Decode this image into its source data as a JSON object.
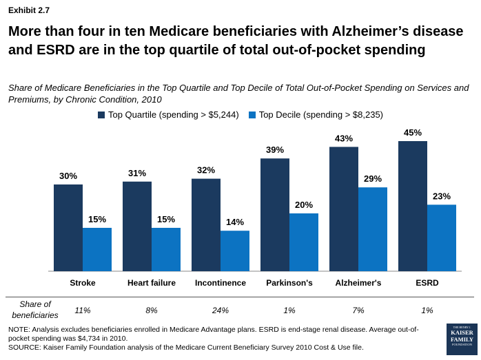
{
  "exhibit": "Exhibit 2.7",
  "title": "More than four in ten Medicare beneficiaries with Alzheimer’s disease and ESRD are in the top quartile of total out-of-pocket spending",
  "subtitle": "Share of Medicare Beneficiaries in the Top Quartile and Top Decile of Total Out-of-Pocket Spending on Services and Premiums, by Chronic Condition, 2010",
  "colors": {
    "top_quartile": "#1b3a5f",
    "top_decile": "#0c73c2"
  },
  "chart_data": {
    "type": "bar",
    "categories": [
      "Stroke",
      "Heart failure",
      "Incontinence",
      "Parkinson's",
      "Alzheimer's",
      "ESRD"
    ],
    "series": [
      {
        "name": "Top Quartile (spending > $5,244)",
        "values": [
          30,
          31,
          32,
          39,
          43,
          45
        ],
        "labels": [
          "30%",
          "31%",
          "32%",
          "39%",
          "43%",
          "45%"
        ]
      },
      {
        "name": "Top Decile (spending > $8,235)",
        "values": [
          15,
          15,
          14,
          20,
          29,
          23
        ],
        "labels": [
          "15%",
          "15%",
          "14%",
          "20%",
          "29%",
          "23%"
        ]
      }
    ],
    "ylim": [
      0,
      50
    ],
    "legend": "top-center",
    "grid": false
  },
  "share": {
    "label": "Share of beneficiaries",
    "values": [
      "11%",
      "8%",
      "24%",
      "1%",
      "7%",
      "1%"
    ]
  },
  "note": "NOTE: Analysis excludes beneficiaries enrolled in Medicare Advantage plans. ESRD is end-stage renal disease. Average out-of-pocket spending was $4,734 in 2010.",
  "source": "SOURCE: Kaiser Family Foundation analysis of the Medicare Current Beneficiary Survey 2010 Cost & Use file.",
  "logo": {
    "line1": "THE HENRY J.",
    "line2": "KAISER",
    "line3": "FAMILY",
    "line4": "FOUNDATION"
  }
}
